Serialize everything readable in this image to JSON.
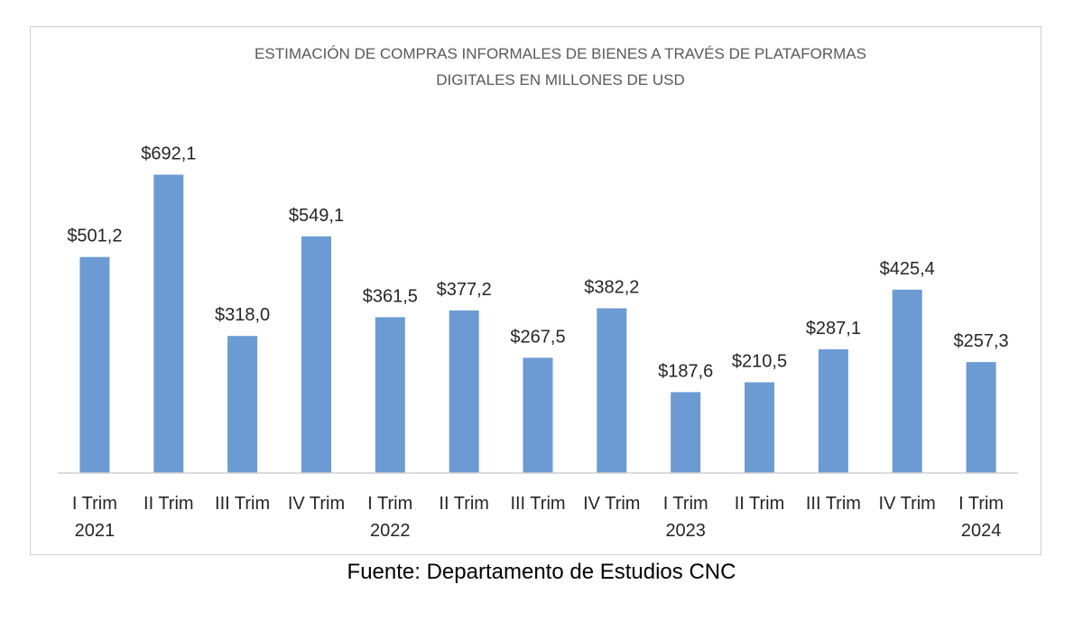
{
  "chart_data": {
    "type": "bar",
    "title": "ESTIMACIÓN DE COMPRAS INFORMALES DE BIENES A TRAVÉS DE PLATAFORMAS DIGITALES EN MILLONES DE USD",
    "title_lines": [
      "ESTIMACIÓN DE COMPRAS INFORMALES DE BIENES A TRAVÉS DE PLATAFORMAS",
      "DIGITALES EN MILLONES DE USD"
    ],
    "categories": [
      [
        "I Trim",
        "2021"
      ],
      [
        "II Trim"
      ],
      [
        "III Trim"
      ],
      [
        "IV Trim"
      ],
      [
        "I Trim",
        "2022"
      ],
      [
        "II Trim"
      ],
      [
        "III Trim"
      ],
      [
        "IV Trim"
      ],
      [
        "I Trim",
        "2023"
      ],
      [
        "II Trim"
      ],
      [
        "III Trim"
      ],
      [
        "IV Trim"
      ],
      [
        "I Trim",
        "2024"
      ]
    ],
    "values": [
      501.2,
      692.1,
      318.0,
      549.1,
      361.5,
      377.2,
      267.5,
      382.2,
      187.6,
      210.5,
      287.1,
      425.4,
      257.3
    ],
    "data_labels": [
      "$501,2",
      "$692,1",
      "$318,0",
      "$549,1",
      "$361,5",
      "$377,2",
      "$267,5",
      "$382,2",
      "$187,6",
      "$210,5",
      "$287,1",
      "$425,4",
      "$257,3"
    ],
    "ylim": [
      0,
      720
    ],
    "xlabel": "",
    "ylabel": "",
    "grid": false,
    "legend": "none",
    "bar_color": "#6b9bd2",
    "axis_color": "#d0d0d0"
  },
  "source_note": "Fuente: Departamento de Estudios CNC"
}
